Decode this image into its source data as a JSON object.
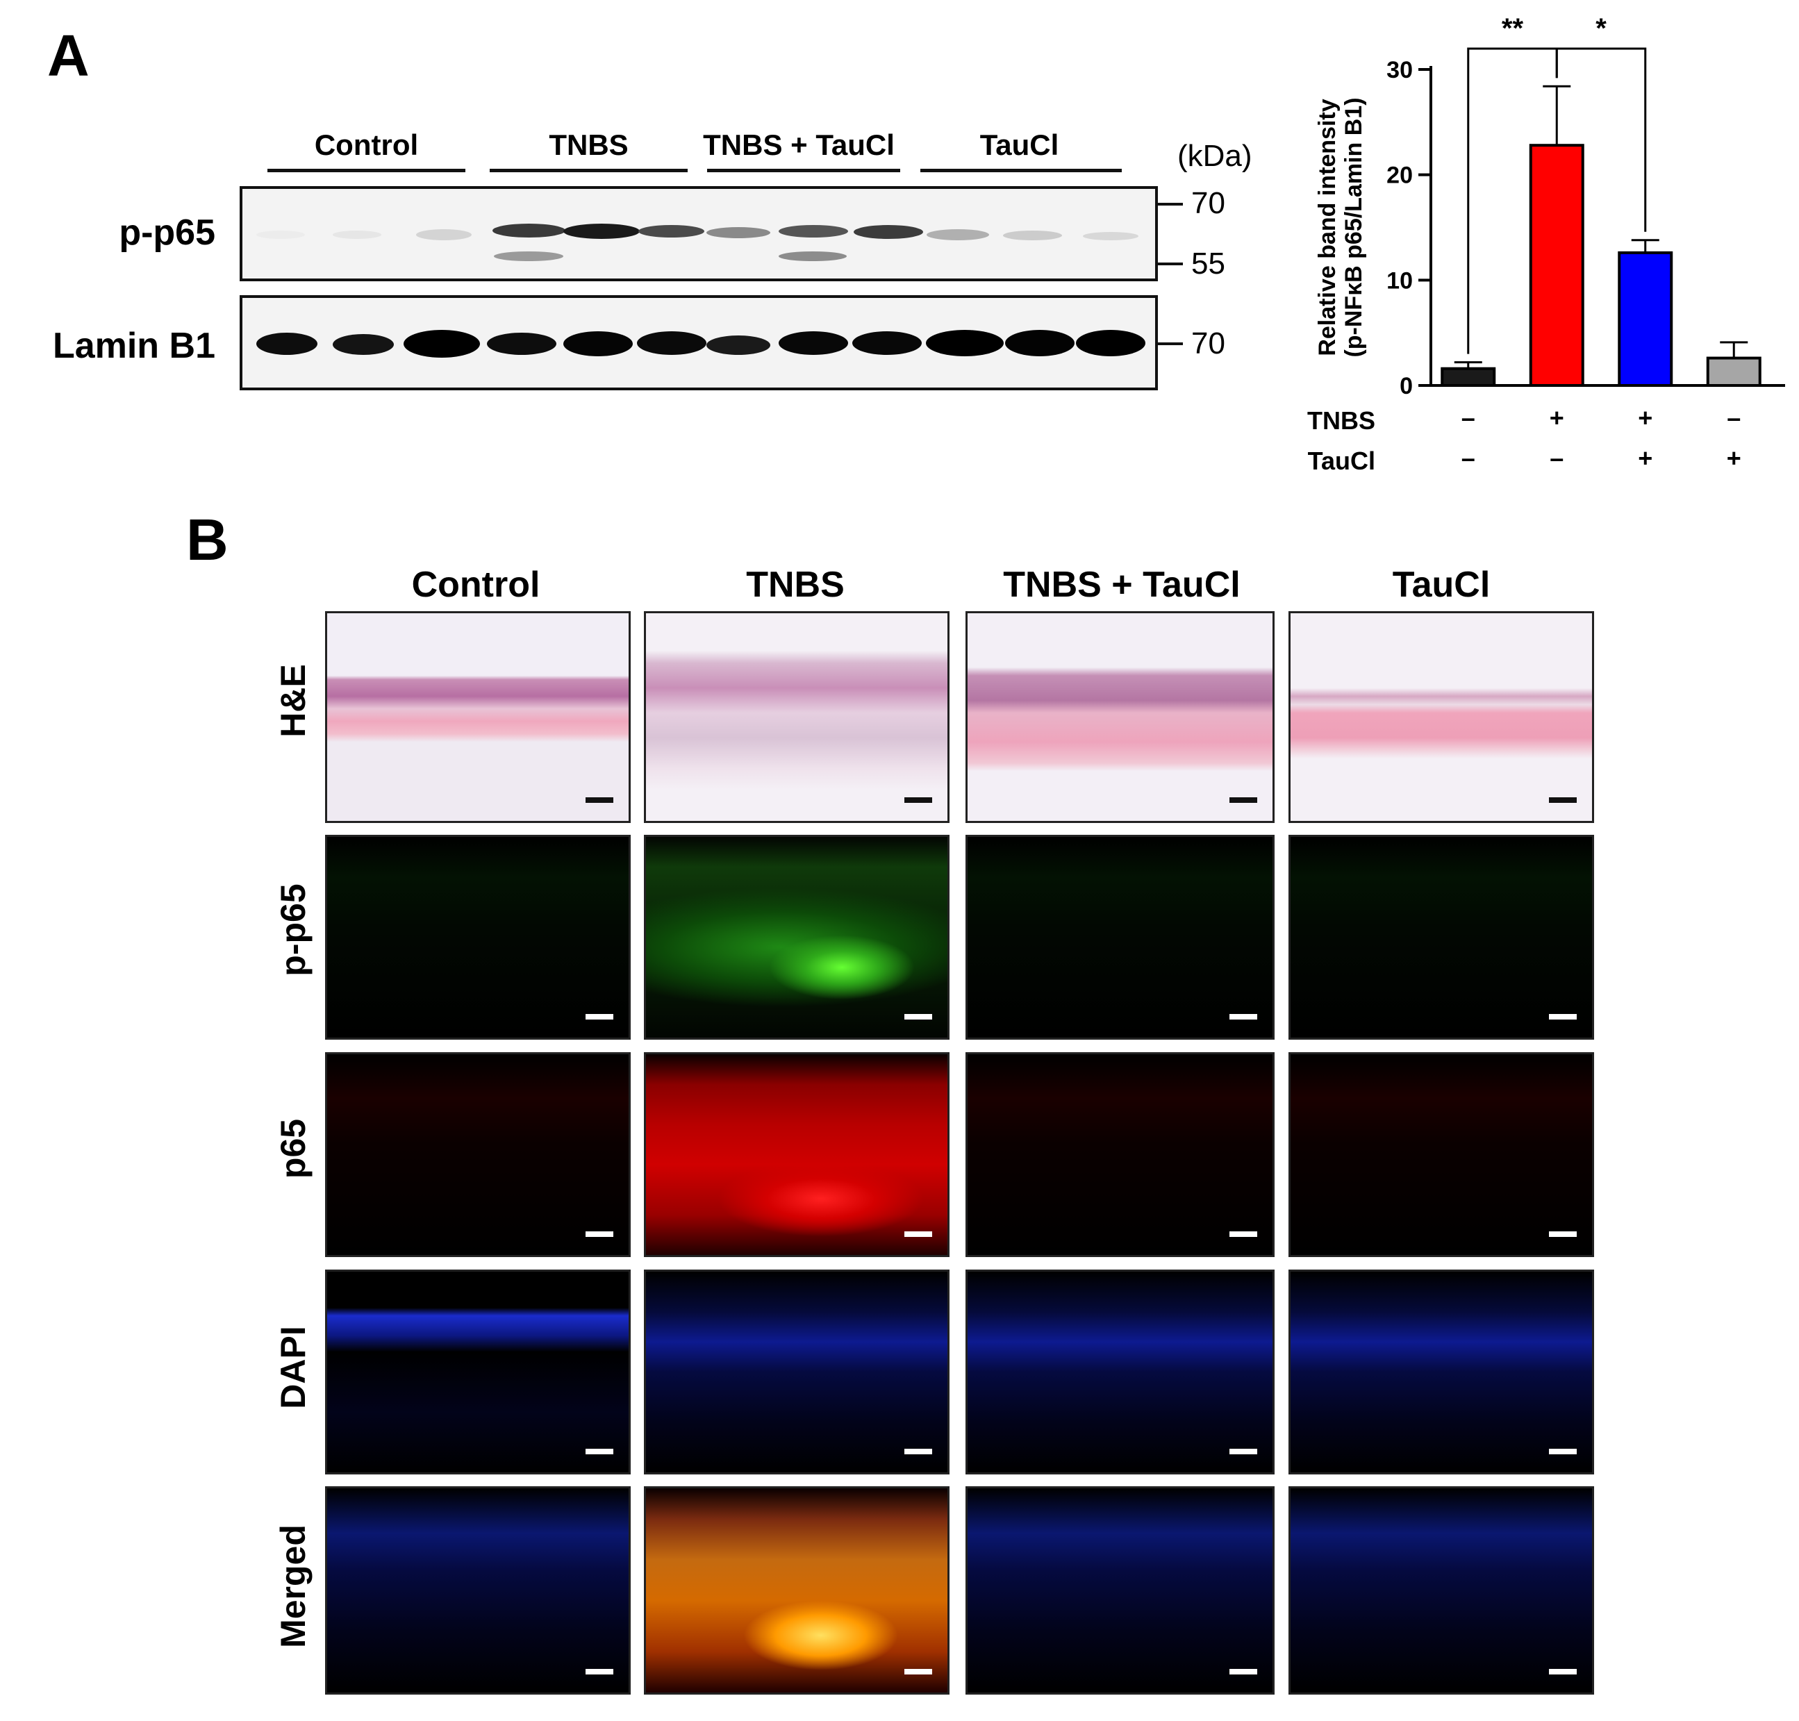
{
  "panel_a": {
    "letter": "A",
    "groups": [
      "Control",
      "TNBS",
      "TNBS + TauCl",
      "TauCl"
    ],
    "kda_unit": "(kDa)",
    "rows": [
      {
        "label": "p-p65",
        "markers": [
          "70",
          "55"
        ]
      },
      {
        "label": "Lamin B1",
        "markers": [
          "70"
        ]
      }
    ]
  },
  "panel_b": {
    "letter": "B",
    "columns": [
      "Control",
      "TNBS",
      "TNBS + TauCl",
      "TauCl"
    ],
    "rows": [
      "H&E",
      "p-p65",
      "p65",
      "DAPI",
      "Merged"
    ]
  },
  "chart_data": {
    "type": "bar",
    "ylabel_line1": "Relative band intensity",
    "ylabel_line2": "(p-NFκB p65/Lamin B1)",
    "ylim": [
      0,
      30
    ],
    "yticks": [
      "0",
      "10",
      "20",
      "30"
    ],
    "values": [
      1.6,
      22.8,
      12.6,
      2.6
    ],
    "errors": [
      0.6,
      5.6,
      1.2,
      1.5
    ],
    "colors": [
      "#1a1a1a",
      "#ff0000",
      "#0000ff",
      "#a6a6a6"
    ],
    "treatment_rows": [
      {
        "label": "TNBS",
        "signs": [
          "–",
          "+",
          "+",
          "–"
        ]
      },
      {
        "label": "TauCl",
        "signs": [
          "–",
          "–",
          "+",
          "+"
        ]
      }
    ],
    "significance": [
      {
        "from": 0,
        "to": 1,
        "label": "**"
      },
      {
        "from": 1,
        "to": 2,
        "label": "*"
      }
    ]
  }
}
